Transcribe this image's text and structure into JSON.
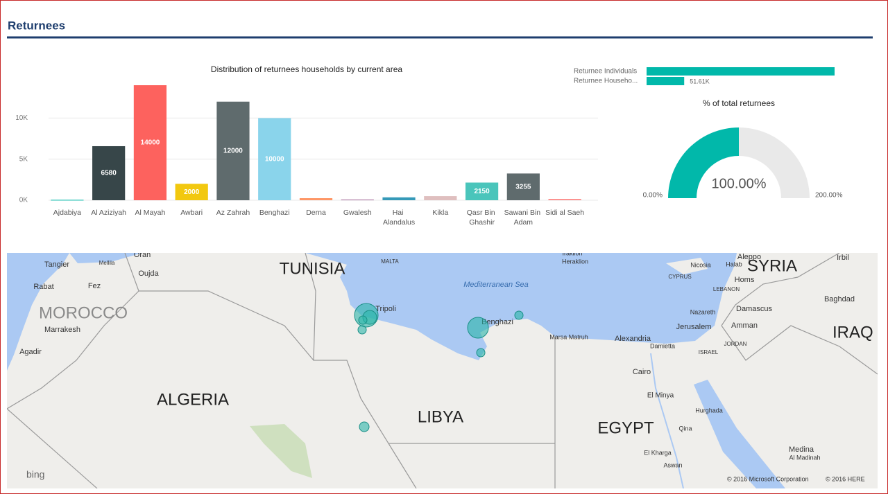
{
  "header": {
    "title": "Returnees"
  },
  "chart_data": [
    {
      "type": "bar",
      "title": "Distribution of returnees households by current area",
      "categories": [
        "Ajdabiya",
        "Al Aziziyah",
        "Al Mayah",
        "Awbari",
        "Az Zahrah",
        "Benghazi",
        "Derna",
        "Gwalesh",
        "Hai Alandalus",
        "Kikla",
        "Qasr Bin Ghashir",
        "Sawani Bin Adam",
        "Sidi al Saeh"
      ],
      "values": [
        50,
        6580,
        14000,
        2000,
        12000,
        10000,
        250,
        80,
        350,
        500,
        2150,
        3255,
        150
      ],
      "colors": [
        "#01b8aa",
        "#374649",
        "#fd625e",
        "#f2c80f",
        "#5f6b6d",
        "#8ad4eb",
        "#fe9666",
        "#a66999",
        "#3599b8",
        "#dfbfbf",
        "#4ac5bb",
        "#5f6b6d",
        "#fb8281"
      ],
      "ylim": [
        0,
        14000
      ],
      "yticks": [
        {
          "value": 0,
          "label": "0K"
        },
        {
          "value": 5000,
          "label": "5K"
        },
        {
          "value": 10000,
          "label": "10K"
        }
      ],
      "grid": true
    },
    {
      "type": "hbar",
      "categories": [
        "Returnee Individuals",
        "Returnee Househo..."
      ],
      "values": [
        258000,
        51610
      ],
      "value_labels": [
        null,
        "51.61K"
      ],
      "color": "#01b8aa",
      "xlim": [
        0,
        258000
      ]
    },
    {
      "type": "gauge",
      "title": "% of total returnees",
      "values": [
        100
      ],
      "value_labels": [
        "100.00%"
      ],
      "ylim": [
        0,
        200
      ],
      "yticks": [
        {
          "value": 0,
          "label": "0.00%"
        },
        {
          "value": 200,
          "label": "200.00%"
        }
      ],
      "color": "#01b8aa",
      "track_color": "#e9e9e9"
    }
  ],
  "map": {
    "countries": [
      "MOROCCO",
      "TUNISIA",
      "ALGERIA",
      "LIBYA",
      "EGYPT",
      "SYRIA",
      "IRAQ"
    ],
    "cities": [
      "Tangier",
      "Oran",
      "Oujda",
      "Rabat",
      "Fez",
      "Marrakesh",
      "Agadir",
      "Tripoli",
      "Benghazi",
      "Alexandria",
      "Cairo",
      "El Minya",
      "Hurghada",
      "Qina",
      "Aswan",
      "El Kharga",
      "Marsa Matruh",
      "Damietta",
      "Jerusalem",
      "Amman",
      "Damascus",
      "Nazareth",
      "Homs",
      "Aleppo",
      "Nicosia",
      "Baghdad",
      "Irbil",
      "Medina",
      "Al Madinah",
      "Iraklion",
      "Heraklion",
      "Halab",
      "LEBANON",
      "JORDAN",
      "ISRAEL",
      "CYPRUS",
      "MALTA",
      "Mellila"
    ],
    "sea": "Mediterranean Sea",
    "logo": "bing",
    "copyright": [
      "© 2016 Microsoft Corporation",
      "© 2016 HERE"
    ]
  }
}
